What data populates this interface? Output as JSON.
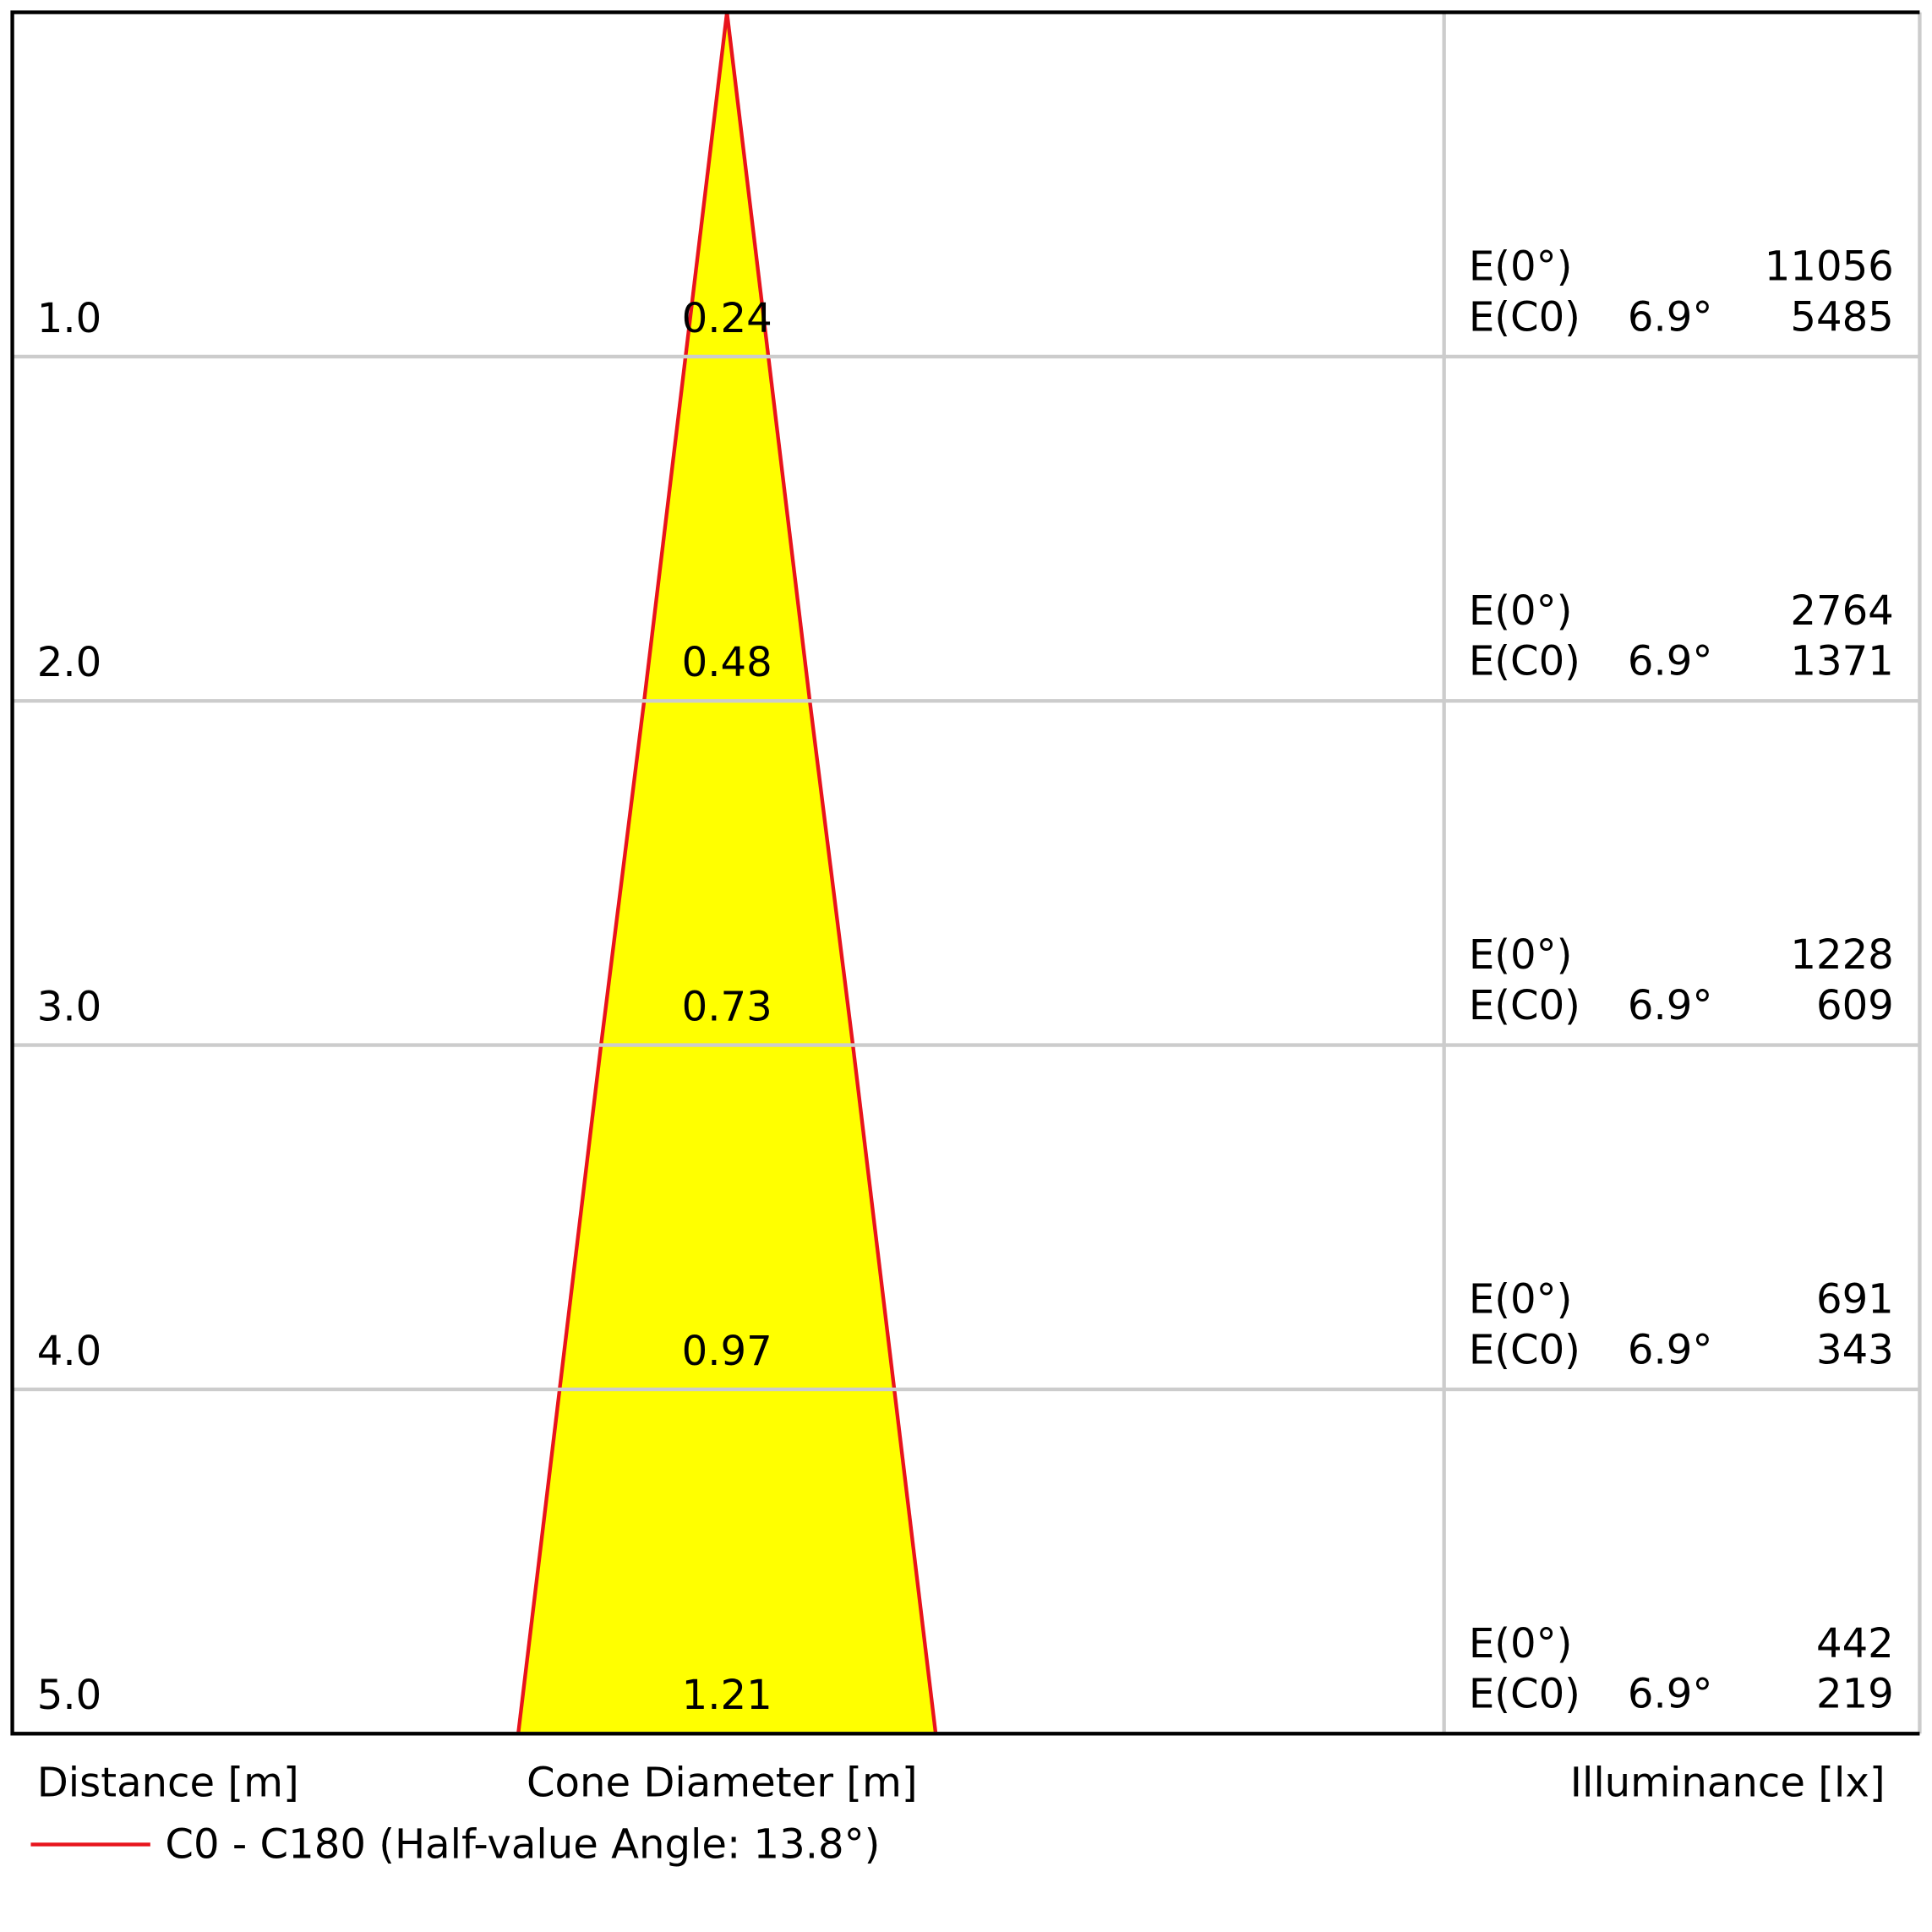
{
  "chart_data": {
    "type": "cone",
    "x_label": "Distance [m]",
    "center_label": "Cone Diameter [m]",
    "right_label": "Illuminance [lx]",
    "legend": "C0 - C180 (Half-value Angle: 13.8°)",
    "color": "#e8141c",
    "fill": "#ffff00",
    "distances": [
      {
        "value": 1,
        "label": "1.0"
      },
      {
        "value": 2,
        "label": "2.0"
      },
      {
        "value": 3,
        "label": "3.0"
      },
      {
        "value": 4,
        "label": "4.0"
      },
      {
        "value": 5,
        "label": "5.0"
      }
    ],
    "diameters": [
      0.24,
      0.48,
      0.73,
      0.97,
      1.21
    ],
    "illuminance": [
      {
        "name": "E(0°)",
        "values": [
          11056,
          2764,
          1228,
          691,
          442
        ]
      },
      {
        "name": "E(C0)",
        "angle": 6.9,
        "angle_label": "6.9°",
        "values": [
          5485,
          1371,
          609,
          343,
          219
        ]
      }
    ]
  }
}
